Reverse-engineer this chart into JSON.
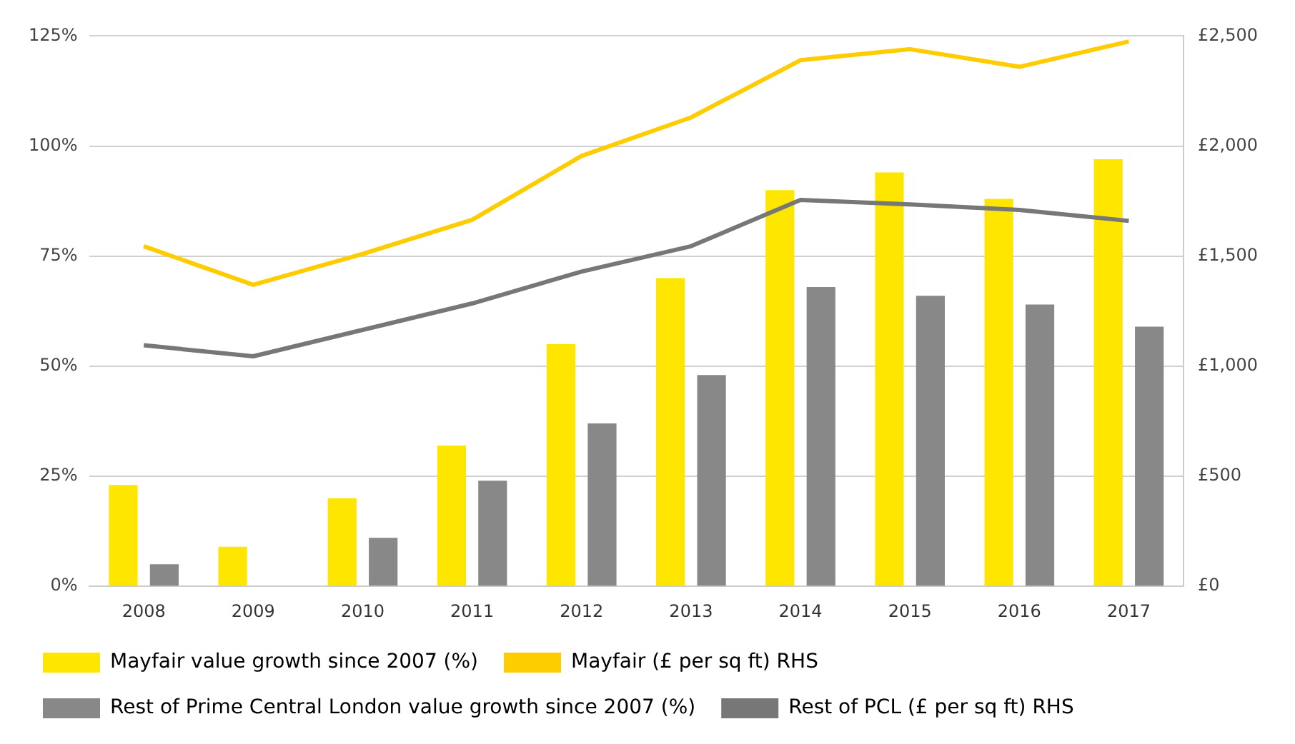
{
  "chart_data": {
    "type": "bar",
    "categories": [
      "2008",
      "2009",
      "2010",
      "2011",
      "2012",
      "2013",
      "2014",
      "2015",
      "2016",
      "2017"
    ],
    "series": [
      {
        "name": "Mayfair value growth since 2007 (%)",
        "color": "#ffe600",
        "values": [
          23,
          9,
          20,
          32,
          55,
          70,
          90,
          94,
          88,
          97
        ]
      },
      {
        "name": "Rest of Prime Central London value growth since 2007 (%)",
        "color": "#888888",
        "values": [
          5,
          0,
          11,
          24,
          37,
          48,
          68,
          66,
          64,
          59
        ]
      },
      {
        "name": "Mayfair (£ per sq ft) RHS",
        "type": "line",
        "axis": "y2",
        "color": "#ffcc00",
        "values": [
          1545,
          1370,
          1510,
          1665,
          1955,
          2130,
          2390,
          2440,
          2360,
          2475
        ]
      },
      {
        "name": "Rest of PCL (£ per sq ft) RHS",
        "type": "line",
        "axis": "y2",
        "color": "#777777",
        "values": [
          1095,
          1045,
          1165,
          1285,
          1430,
          1545,
          1755,
          1735,
          1710,
          1660
        ]
      }
    ],
    "ylim": [
      0,
      125
    ],
    "yticks": [
      {
        "value": 0,
        "label": "0%"
      },
      {
        "value": 25,
        "label": "25%"
      },
      {
        "value": 50,
        "label": "50%"
      },
      {
        "value": 75,
        "label": "75%"
      },
      {
        "value": 100,
        "label": "100%"
      },
      {
        "value": 125,
        "label": "125%"
      }
    ],
    "y2lim": [
      0,
      2500
    ],
    "y2ticks": [
      {
        "value": 0,
        "label": "£0"
      },
      {
        "value": 500,
        "label": "£500"
      },
      {
        "value": 1000,
        "label": "£1,000"
      },
      {
        "value": 1500,
        "label": "£1,500"
      },
      {
        "value": 2000,
        "label": "£2,000"
      },
      {
        "value": 2500,
        "label": "£2,500"
      }
    ],
    "grid": "y",
    "legend": "bottom",
    "marker": "none"
  }
}
